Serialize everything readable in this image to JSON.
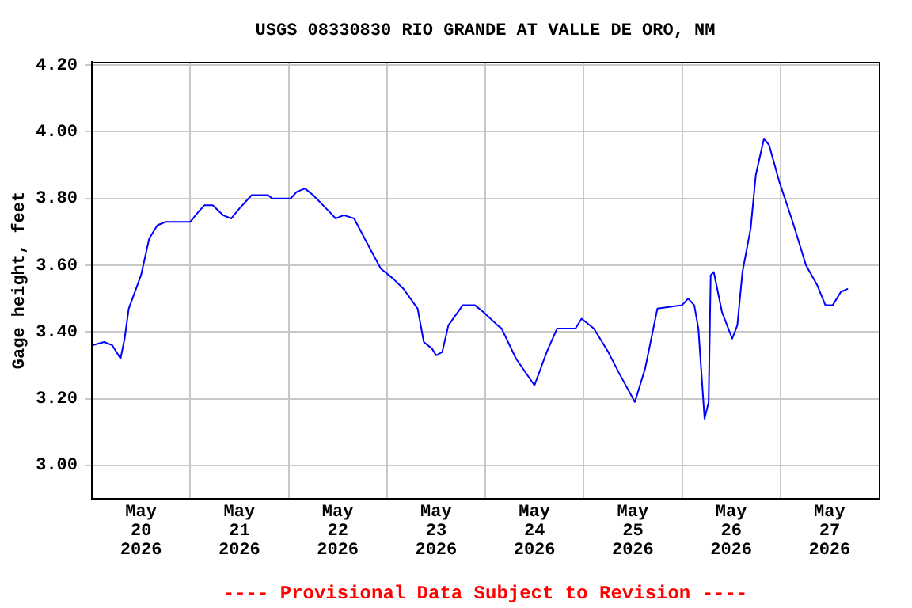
{
  "chart_data": {
    "type": "line",
    "title": "USGS 08330830 RIO GRANDE AT VALLE DE ORO, NM",
    "ylabel": "Gage height, feet",
    "annotations": [
      "---- Provisional Data Subject to Revision ----"
    ],
    "grid": true,
    "legend": false,
    "marker": "none",
    "line_style": "solid",
    "xlim": [
      "2026-05-20T00:00",
      "2026-05-28T00:00"
    ],
    "ylim": [
      2.9,
      4.21
    ],
    "xticks": [
      {
        "value": "2026-05-20T12:00",
        "label": "May\n20\n2026"
      },
      {
        "value": "2026-05-21T00:00",
        "label": null
      },
      {
        "value": "2026-05-21T12:00",
        "label": "May\n21\n2026"
      },
      {
        "value": "2026-05-22T00:00",
        "label": null
      },
      {
        "value": "2026-05-22T12:00",
        "label": "May\n22\n2026"
      },
      {
        "value": "2026-05-23T00:00",
        "label": null
      },
      {
        "value": "2026-05-23T12:00",
        "label": "May\n23\n2026"
      },
      {
        "value": "2026-05-24T00:00",
        "label": null
      },
      {
        "value": "2026-05-24T12:00",
        "label": "May\n24\n2026"
      },
      {
        "value": "2026-05-25T00:00",
        "label": null
      },
      {
        "value": "2026-05-25T12:00",
        "label": "May\n25\n2026"
      },
      {
        "value": "2026-05-26T00:00",
        "label": null
      },
      {
        "value": "2026-05-26T12:00",
        "label": "May\n26\n2026"
      },
      {
        "value": "2026-05-27T00:00",
        "label": null
      },
      {
        "value": "2026-05-27T12:00",
        "label": "May\n27\n2026"
      }
    ],
    "yticks": [
      {
        "value": 3.0,
        "label": "3.00"
      },
      {
        "value": 3.2,
        "label": "3.20"
      },
      {
        "value": 3.4,
        "label": "3.40"
      },
      {
        "value": 3.6,
        "label": "3.60"
      },
      {
        "value": 3.8,
        "label": "3.80"
      },
      {
        "value": 4.0,
        "label": "4.00"
      },
      {
        "value": 4.2,
        "label": "4.20"
      }
    ],
    "x": [
      "2026-05-20T00:00",
      "2026-05-20T03:00",
      "2026-05-20T05:00",
      "2026-05-20T07:00",
      "2026-05-20T08:00",
      "2026-05-20T09:00",
      "2026-05-20T12:00",
      "2026-05-20T14:00",
      "2026-05-20T16:00",
      "2026-05-20T18:00",
      "2026-05-21T00:00",
      "2026-05-21T02:00",
      "2026-05-21T03:30",
      "2026-05-21T05:30",
      "2026-05-21T08:00",
      "2026-05-21T10:00",
      "2026-05-21T12:00",
      "2026-05-21T15:00",
      "2026-05-21T19:00",
      "2026-05-21T20:00",
      "2026-05-22T00:30",
      "2026-05-22T02:00",
      "2026-05-22T04:00",
      "2026-05-22T06:00",
      "2026-05-22T10:00",
      "2026-05-22T11:30",
      "2026-05-22T13:30",
      "2026-05-22T16:00",
      "2026-05-22T19:00",
      "2026-05-22T22:30",
      "2026-05-23T01:30",
      "2026-05-23T04:00",
      "2026-05-23T07:30",
      "2026-05-23T09:00",
      "2026-05-23T11:00",
      "2026-05-23T12:00",
      "2026-05-23T13:30",
      "2026-05-23T15:00",
      "2026-05-23T18:30",
      "2026-05-23T21:30",
      "2026-05-23T23:30",
      "2026-05-24T03:00",
      "2026-05-24T04:00",
      "2026-05-24T07:30",
      "2026-05-24T12:00",
      "2026-05-24T15:00",
      "2026-05-24T17:30",
      "2026-05-24T22:00",
      "2026-05-24T23:30",
      "2026-05-25T02:30",
      "2026-05-25T06:00",
      "2026-05-25T08:30",
      "2026-05-25T12:30",
      "2026-05-25T15:00",
      "2026-05-25T18:00",
      "2026-05-26T00:00",
      "2026-05-26T01:30",
      "2026-05-26T03:00",
      "2026-05-26T04:00",
      "2026-05-26T05:30",
      "2026-05-26T06:30",
      "2026-05-26T07:00",
      "2026-05-26T07:45",
      "2026-05-26T09:45",
      "2026-05-26T12:15",
      "2026-05-26T13:30",
      "2026-05-26T14:45",
      "2026-05-26T16:45",
      "2026-05-26T18:00",
      "2026-05-26T20:00",
      "2026-05-26T21:15",
      "2026-05-26T23:45",
      "2026-05-27T03:00",
      "2026-05-27T06:15",
      "2026-05-27T09:00",
      "2026-05-27T11:00",
      "2026-05-27T12:45",
      "2026-05-27T14:45",
      "2026-05-27T16:30"
    ],
    "series": [
      {
        "color": "#0000ff",
        "values": [
          3.36,
          3.37,
          3.36,
          3.32,
          3.38,
          3.47,
          3.57,
          3.68,
          3.72,
          3.73,
          3.73,
          3.76,
          3.78,
          3.78,
          3.75,
          3.74,
          3.77,
          3.81,
          3.81,
          3.8,
          3.8,
          3.82,
          3.83,
          3.81,
          3.76,
          3.74,
          3.75,
          3.74,
          3.67,
          3.59,
          3.56,
          3.53,
          3.47,
          3.37,
          3.35,
          3.33,
          3.34,
          3.42,
          3.48,
          3.48,
          3.46,
          3.42,
          3.41,
          3.32,
          3.24,
          3.34,
          3.41,
          3.41,
          3.44,
          3.41,
          3.34,
          3.28,
          3.19,
          3.29,
          3.47,
          3.48,
          3.5,
          3.48,
          3.41,
          3.14,
          3.19,
          3.57,
          3.58,
          3.46,
          3.38,
          3.42,
          3.58,
          3.71,
          3.87,
          3.98,
          3.96,
          3.85,
          3.73,
          3.6,
          3.54,
          3.48,
          3.48,
          3.52,
          3.53
        ]
      }
    ]
  }
}
